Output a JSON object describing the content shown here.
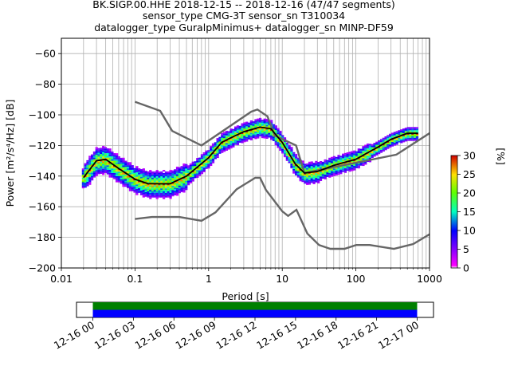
{
  "chart_data": {
    "type": "heatmap",
    "title_lines": [
      "BK.SIGP.00.HHE   2018-12-15 -- 2018-12-16  (47/47 segments)",
      "sensor_type CMG-3T sensor_sn T310034",
      "datalogger_type GuralpMinimus+ datalogger_sn MINP-DF59"
    ],
    "xlabel": "Period [s]",
    "ylabel": "Power [m²/s⁴/Hz] [dB]",
    "x_scale": "log",
    "xlim": [
      0.01,
      1000
    ],
    "ylim": [
      -200,
      -50
    ],
    "x_tick_labels": [
      "0.01",
      "0.1",
      "1",
      "10",
      "100",
      "1000"
    ],
    "x_tick_values": [
      0.01,
      0.1,
      1,
      10,
      100,
      1000
    ],
    "y_tick_values": [
      -200,
      -180,
      -160,
      -140,
      -120,
      -100,
      -80,
      -60
    ],
    "grid": true,
    "colorbar": {
      "label": "[%]",
      "range": [
        0,
        30
      ],
      "tick_values": [
        0,
        5,
        10,
        15,
        20,
        25,
        30
      ]
    },
    "mean_curve": [
      [
        0.02,
        -141
      ],
      [
        0.03,
        -130
      ],
      [
        0.04,
        -129
      ],
      [
        0.06,
        -135
      ],
      [
        0.1,
        -142
      ],
      [
        0.15,
        -145
      ],
      [
        0.3,
        -145
      ],
      [
        0.5,
        -140
      ],
      [
        1,
        -128
      ],
      [
        1.5,
        -118
      ],
      [
        2,
        -115
      ],
      [
        3,
        -111
      ],
      [
        5,
        -108
      ],
      [
        7,
        -109
      ],
      [
        10,
        -118
      ],
      [
        15,
        -132
      ],
      [
        20,
        -138
      ],
      [
        30,
        -137
      ],
      [
        50,
        -133
      ],
      [
        100,
        -129
      ],
      [
        200,
        -121
      ],
      [
        300,
        -116
      ],
      [
        500,
        -112
      ],
      [
        700,
        -112
      ]
    ],
    "nhnm": [
      [
        0.1,
        -91.5
      ],
      [
        0.22,
        -97.4
      ],
      [
        0.32,
        -110.5
      ],
      [
        0.8,
        -120
      ],
      [
        3.8,
        -97.9
      ],
      [
        4.6,
        -96.5
      ],
      [
        6.3,
        -101
      ],
      [
        7.9,
        -113.5
      ],
      [
        15.4,
        -120
      ],
      [
        20,
        -138
      ],
      [
        354.8,
        -126
      ],
      [
        1000,
        -112
      ]
    ],
    "nlnm": [
      [
        0.1,
        -168
      ],
      [
        0.17,
        -166.7
      ],
      [
        0.4,
        -166.7
      ],
      [
        0.8,
        -169.2
      ],
      [
        1.24,
        -163.7
      ],
      [
        2.4,
        -148.6
      ],
      [
        4.3,
        -141.1
      ],
      [
        5,
        -141.1
      ],
      [
        6,
        -149
      ],
      [
        10,
        -163
      ],
      [
        12,
        -166
      ],
      [
        15.6,
        -162
      ],
      [
        21.9,
        -177.5
      ],
      [
        31.6,
        -185
      ],
      [
        45,
        -187.5
      ],
      [
        70,
        -187.5
      ],
      [
        101,
        -185
      ],
      [
        154,
        -185
      ],
      [
        328,
        -187.5
      ],
      [
        600,
        -184.4
      ],
      [
        1000,
        -178
      ]
    ],
    "time_axis": {
      "tick_labels": [
        "12-16 00",
        "12-16 03",
        "12-16 06",
        "12-16 09",
        "12-16 12",
        "12-16 15",
        "12-16 18",
        "12-16 21",
        "12-17 00"
      ],
      "tick_hours": [
        0,
        3,
        6,
        9,
        12,
        15,
        18,
        21,
        24
      ],
      "coverage_hours": [
        0,
        24
      ],
      "bar_colors": [
        "#008000",
        "#0000ff"
      ]
    }
  }
}
